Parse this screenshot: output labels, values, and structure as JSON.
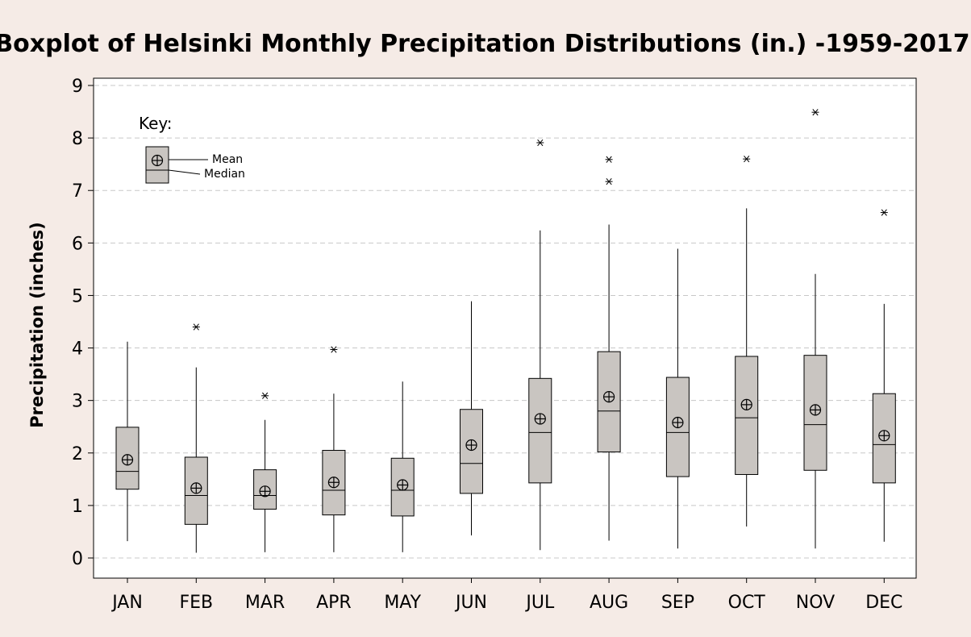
{
  "chart_data": {
    "type": "boxplot",
    "title": "Boxplot of Helsinki Monthly Precipitation Distributions (in.) -1959-2017",
    "ylabel": "Precipitation (inches)",
    "xlabel": "",
    "ylim": [
      0,
      9
    ],
    "yticks": [
      0,
      1,
      2,
      3,
      4,
      5,
      6,
      7,
      8,
      9
    ],
    "grid": "horizontal dashed",
    "categories": [
      "JAN",
      "FEB",
      "MAR",
      "APR",
      "MAY",
      "JUN",
      "JUL",
      "AUG",
      "SEP",
      "OCT",
      "NOV",
      "DEC"
    ],
    "boxes": [
      {
        "month": "JAN",
        "min": 0.32,
        "q1": 1.31,
        "median": 1.65,
        "q3": 2.49,
        "max": 4.12,
        "mean": 1.87,
        "outliers": []
      },
      {
        "month": "FEB",
        "min": 0.1,
        "q1": 0.64,
        "median": 1.19,
        "q3": 1.92,
        "max": 3.63,
        "mean": 1.33,
        "outliers": [
          4.4
        ]
      },
      {
        "month": "MAR",
        "min": 0.11,
        "q1": 0.93,
        "median": 1.19,
        "q3": 1.68,
        "max": 2.63,
        "mean": 1.27,
        "outliers": [
          3.09
        ]
      },
      {
        "month": "APR",
        "min": 0.11,
        "q1": 0.82,
        "median": 1.29,
        "q3": 2.05,
        "max": 3.13,
        "mean": 1.44,
        "outliers": [
          3.97
        ]
      },
      {
        "month": "MAY",
        "min": 0.11,
        "q1": 0.8,
        "median": 1.29,
        "q3": 1.9,
        "max": 3.36,
        "mean": 1.39,
        "outliers": []
      },
      {
        "month": "JUN",
        "min": 0.43,
        "q1": 1.23,
        "median": 1.8,
        "q3": 2.83,
        "max": 4.89,
        "mean": 2.15,
        "outliers": []
      },
      {
        "month": "JUL",
        "min": 0.15,
        "q1": 1.43,
        "median": 2.39,
        "q3": 3.42,
        "max": 6.24,
        "mean": 2.65,
        "outliers": [
          7.91
        ]
      },
      {
        "month": "AUG",
        "min": 0.33,
        "q1": 2.02,
        "median": 2.8,
        "q3": 3.93,
        "max": 6.35,
        "mean": 3.07,
        "outliers": [
          7.17,
          7.59
        ]
      },
      {
        "month": "SEP",
        "min": 0.18,
        "q1": 1.55,
        "median": 2.39,
        "q3": 3.44,
        "max": 5.89,
        "mean": 2.58,
        "outliers": []
      },
      {
        "month": "OCT",
        "min": 0.6,
        "q1": 1.59,
        "median": 2.67,
        "q3": 3.84,
        "max": 6.66,
        "mean": 2.92,
        "outliers": [
          7.6
        ]
      },
      {
        "month": "NOV",
        "min": 0.18,
        "q1": 1.67,
        "median": 2.54,
        "q3": 3.86,
        "max": 5.41,
        "mean": 2.82,
        "outliers": [
          8.49
        ]
      },
      {
        "month": "DEC",
        "min": 0.31,
        "q1": 1.43,
        "median": 2.16,
        "q3": 3.13,
        "max": 4.84,
        "mean": 2.33,
        "outliers": [
          6.58
        ]
      }
    ],
    "key": {
      "title": "Key:",
      "mean_label": "Mean",
      "median_label": "Median"
    },
    "colors": {
      "background": "#f5ebe6",
      "plot_area": "#ffffff",
      "box_fill": "#c9c5c1",
      "grid": "#c8c8c8",
      "line": "#000000"
    }
  }
}
